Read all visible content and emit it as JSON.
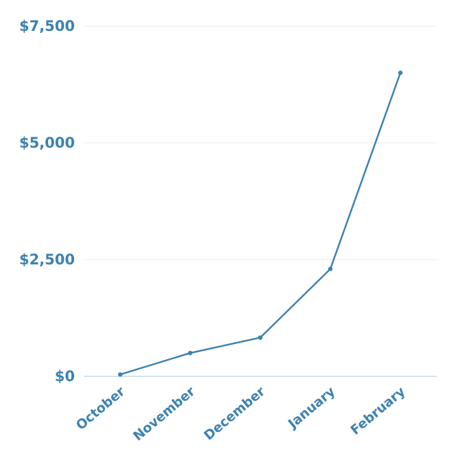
{
  "chart_data": {
    "type": "line",
    "categories": [
      "October",
      "November",
      "December",
      "January",
      "February"
    ],
    "series": [
      {
        "values": [
          40,
          500,
          830,
          2300,
          6500
        ]
      }
    ],
    "y_ticks": [
      "$0",
      "$2,500",
      "$5,000",
      "$7,500"
    ],
    "y_tick_values": [
      0,
      2500,
      5000,
      7500
    ],
    "ylim": [
      0,
      7500
    ],
    "grid": true,
    "color": "#3d82b0"
  }
}
